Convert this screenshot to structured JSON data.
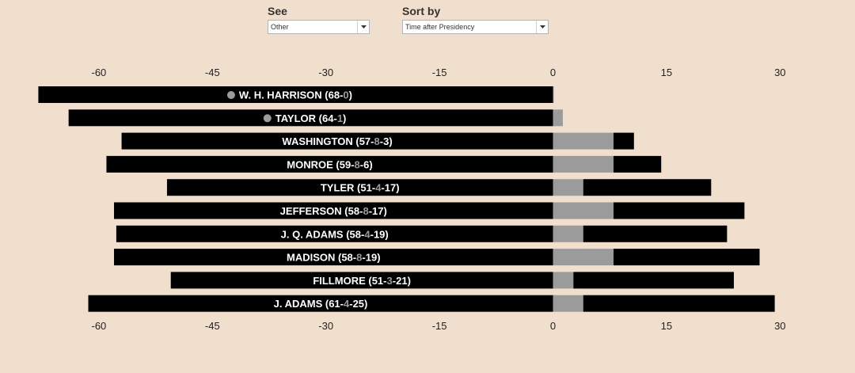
{
  "controls": {
    "see": {
      "label": "See",
      "value": "Other"
    },
    "sort": {
      "label": "Sort by",
      "value": "Time after Presidency"
    }
  },
  "colors": {
    "background": "#f1dfcd",
    "bar": "#000000",
    "presidency": "#9b9b9b",
    "label_text": "#ffffff",
    "highlight_text": "#9b9b9b",
    "died_in_office_marker": "#9b9b9b"
  },
  "chart_data": {
    "type": "bar",
    "orientation": "horizontal",
    "xlim": [
      -60,
      30
    ],
    "xticks": [
      "-60",
      "-45",
      "-30",
      "-15",
      "0",
      "15",
      "30"
    ],
    "tick_values": [
      -60,
      -45,
      -30,
      -15,
      0,
      15,
      30
    ],
    "x_axis_positions": [
      "top",
      "bottom"
    ],
    "segments": [
      "age at taking office (negative side)",
      "presidency",
      "time after presidency"
    ],
    "rows": [
      {
        "name": "W. H. HARRISON",
        "stats": [
          "68",
          "0"
        ],
        "age_start": 68,
        "presidency": 0.1,
        "after": 0,
        "died_in_office": true
      },
      {
        "name": "TAYLOR",
        "stats": [
          "64",
          "1"
        ],
        "age_start": 64,
        "presidency": 1.3,
        "after": 0,
        "died_in_office": true
      },
      {
        "name": "WASHINGTON",
        "stats": [
          "57",
          "8",
          "3"
        ],
        "age_start": 57,
        "presidency": 8,
        "after": 2.7,
        "died_in_office": false
      },
      {
        "name": "MONROE",
        "stats": [
          "59",
          "8",
          "6"
        ],
        "age_start": 59,
        "presidency": 8,
        "after": 6.3,
        "died_in_office": false
      },
      {
        "name": "TYLER",
        "stats": [
          "51",
          "4",
          "17"
        ],
        "age_start": 51,
        "presidency": 4,
        "after": 16.9,
        "died_in_office": false
      },
      {
        "name": "JEFFERSON",
        "stats": [
          "58",
          "8",
          "17"
        ],
        "age_start": 58,
        "presidency": 8,
        "after": 17.3,
        "died_in_office": false
      },
      {
        "name": "J. Q. ADAMS",
        "stats": [
          "58",
          "4",
          "19"
        ],
        "age_start": 57.7,
        "presidency": 4,
        "after": 19,
        "died_in_office": false
      },
      {
        "name": "MADISON",
        "stats": [
          "58",
          "8",
          "19"
        ],
        "age_start": 58,
        "presidency": 8,
        "after": 19.3,
        "died_in_office": false
      },
      {
        "name": "FILLMORE",
        "stats": [
          "51",
          "3",
          "21"
        ],
        "age_start": 50.5,
        "presidency": 2.7,
        "after": 21.2,
        "died_in_office": false
      },
      {
        "name": "J. ADAMS",
        "stats": [
          "61",
          "4",
          "25"
        ],
        "age_start": 61.4,
        "presidency": 4,
        "after": 25.3,
        "died_in_office": false
      }
    ]
  }
}
